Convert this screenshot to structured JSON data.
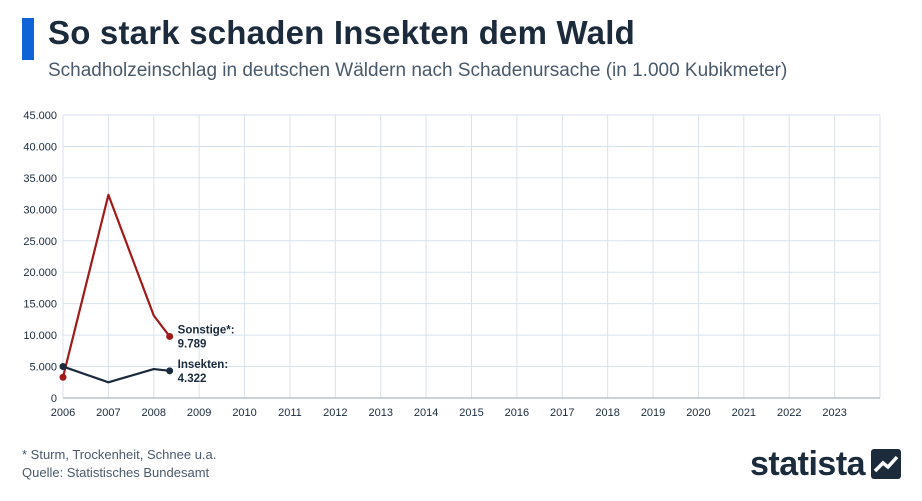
{
  "header": {
    "title": "So stark schaden Insekten dem Wald",
    "subtitle": "Schadholzeinschlag in deutschen Wäldern nach Schadenursache (in 1.000 Kubikmeter)"
  },
  "footer": {
    "footnote": "* Sturm, Trockenheit, Schnee u.a.",
    "source": "Quelle: Statistisches Bundesamt",
    "logo": "statista"
  },
  "colors": {
    "accent": "#0f63d6",
    "sonstige": "#a01a1a",
    "insekten": "#1b2b3c",
    "grid": "#d8e2ec"
  },
  "chart_data": {
    "type": "line",
    "x_ticks": [
      "2006",
      "2007",
      "2008",
      "2009",
      "2010",
      "2011",
      "2012",
      "2013",
      "2014",
      "2015",
      "2016",
      "2017",
      "2018",
      "2019",
      "2020",
      "2021",
      "2022",
      "2023"
    ],
    "y_ticks": [
      "0",
      "5.000",
      "10.000",
      "15.000",
      "20.000",
      "25.000",
      "30.000",
      "35.000",
      "40.000",
      "45.000"
    ],
    "ylim": [
      0,
      45000
    ],
    "xlim": [
      2006,
      2024
    ],
    "grid": true,
    "series": [
      {
        "name": "Sonstige*",
        "color": "#a01a1a",
        "x": [
          2006.0,
          2007.0,
          2008.0,
          2008.35
        ],
        "y": [
          3300,
          32300,
          13100,
          9789
        ],
        "end_label": "Sonstige*:",
        "end_value": "9.789"
      },
      {
        "name": "Insekten",
        "color": "#1b2b3c",
        "x": [
          2006.0,
          2007.0,
          2008.0,
          2008.35
        ],
        "y": [
          5000,
          2500,
          4600,
          4322
        ],
        "end_label": "Insekten:",
        "end_value": "4.322"
      }
    ]
  }
}
